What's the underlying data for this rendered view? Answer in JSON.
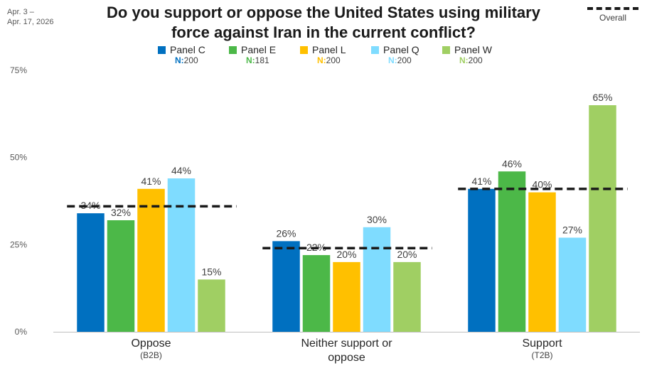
{
  "header": {
    "date_line1": "Apr. 3 –",
    "date_line2": "Apr. 17, 2026",
    "title_line1": "Do you support or oppose the United States using military",
    "title_line2": "force against Iran in the current conflict?",
    "overall_label": "Overall"
  },
  "legend": [
    {
      "name": "Panel C",
      "n_label": "N:",
      "n_value": "200",
      "color": "#0070c0"
    },
    {
      "name": "Panel E",
      "n_label": "N:",
      "n_value": "181",
      "color": "#4cb848"
    },
    {
      "name": "Panel L",
      "n_label": "N:",
      "n_value": "200",
      "color": "#ffc000"
    },
    {
      "name": "Panel Q",
      "n_label": "N:",
      "n_value": "200",
      "color": "#7fdcff"
    },
    {
      "name": "Panel W",
      "n_label": "N:",
      "n_value": "200",
      "color": "#a0cf63"
    }
  ],
  "chart_data": {
    "type": "bar",
    "title": "Do you support or oppose the United States using military force against Iran in the current conflict?",
    "categories": [
      {
        "label_line1": "Oppose",
        "label_line2": "(B2B)",
        "label_style": "sub"
      },
      {
        "label_line1": "Neither support or",
        "label_line2": "oppose",
        "label_style": "main"
      },
      {
        "label_line1": "Support",
        "label_line2": "(T2B)",
        "label_style": "sub"
      }
    ],
    "series": [
      {
        "name": "Panel C",
        "values": [
          34,
          26,
          41
        ],
        "labels": [
          "34%",
          "26%",
          "41%"
        ],
        "color": "#0070c0"
      },
      {
        "name": "Panel E",
        "values": [
          32,
          22,
          46
        ],
        "labels": [
          "32%",
          "22%",
          "46%"
        ],
        "color": "#4cb848"
      },
      {
        "name": "Panel L",
        "values": [
          41,
          20,
          40
        ],
        "labels": [
          "41%",
          "20%",
          "40%"
        ],
        "color": "#ffc000"
      },
      {
        "name": "Panel Q",
        "values": [
          44,
          30,
          27
        ],
        "labels": [
          "44%",
          "30%",
          "27%"
        ],
        "color": "#7fdcff"
      },
      {
        "name": "Panel W",
        "values": [
          15,
          20,
          65
        ],
        "labels": [
          "15%",
          "20%",
          "65%"
        ],
        "color": "#a0cf63"
      }
    ],
    "overall": [
      36,
      24,
      41
    ],
    "ylim": [
      0,
      75
    ],
    "yticks": [
      0,
      25,
      50,
      75
    ],
    "ytick_labels": [
      "0%",
      "25%",
      "50%",
      "75%"
    ],
    "xlabel": "",
    "ylabel": "",
    "grid": false
  }
}
